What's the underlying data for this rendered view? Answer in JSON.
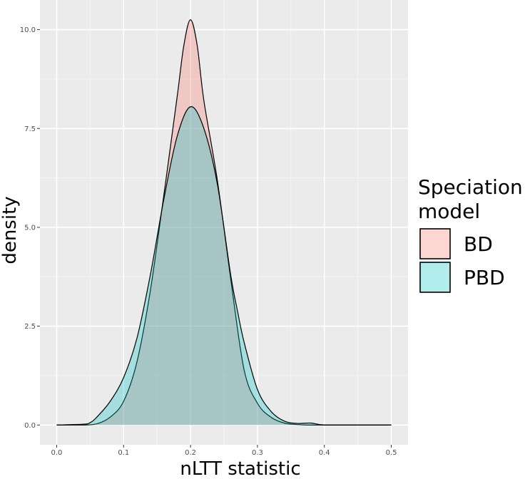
{
  "chart_data": {
    "type": "area",
    "title": "",
    "xlabel": "nLTT  statistic",
    "ylabel": "density",
    "xlim": [
      -0.025,
      0.525
    ],
    "ylim": [
      -0.5,
      10.75
    ],
    "x_ticks": [
      0.0,
      0.1,
      0.2,
      0.3,
      0.4,
      0.5
    ],
    "x_tick_labels": [
      "0.0",
      "0.1",
      "0.2",
      "0.3",
      "0.4",
      "0.5"
    ],
    "y_ticks": [
      0.0,
      2.5,
      5.0,
      7.5,
      10.0
    ],
    "y_tick_labels": [
      "0.0",
      "2.5",
      "5.0",
      "7.5",
      "10.0"
    ],
    "grid": true,
    "background": "#ebebeb",
    "legend": {
      "title": "Speciation\nmodel",
      "position": "right"
    },
    "series": [
      {
        "name": "BD",
        "color": "#f8766d",
        "x": [
          0.0,
          0.04,
          0.06,
          0.08,
          0.1,
          0.12,
          0.14,
          0.16,
          0.18,
          0.19,
          0.2,
          0.21,
          0.22,
          0.24,
          0.26,
          0.28,
          0.3,
          0.32,
          0.34,
          0.36,
          0.38,
          0.4,
          0.45,
          0.5
        ],
        "y": [
          0.0,
          0.0,
          0.03,
          0.2,
          0.6,
          1.6,
          3.4,
          5.8,
          8.3,
          9.6,
          10.25,
          9.6,
          8.2,
          6.2,
          3.7,
          1.4,
          0.55,
          0.2,
          0.05,
          0.01,
          0.0,
          0.0,
          0.0,
          0.0
        ]
      },
      {
        "name": "PBD",
        "color": "#00bfc4",
        "x": [
          0.0,
          0.04,
          0.05,
          0.06,
          0.08,
          0.1,
          0.12,
          0.14,
          0.16,
          0.18,
          0.2,
          0.22,
          0.24,
          0.26,
          0.27,
          0.28,
          0.3,
          0.32,
          0.34,
          0.36,
          0.38,
          0.4,
          0.45,
          0.5
        ],
        "y": [
          0.0,
          0.02,
          0.06,
          0.2,
          0.6,
          1.2,
          2.2,
          3.8,
          5.7,
          7.3,
          8.05,
          7.5,
          6.1,
          3.8,
          2.9,
          2.1,
          0.9,
          0.35,
          0.1,
          0.04,
          0.05,
          0.0,
          0.0,
          0.0
        ]
      }
    ]
  }
}
